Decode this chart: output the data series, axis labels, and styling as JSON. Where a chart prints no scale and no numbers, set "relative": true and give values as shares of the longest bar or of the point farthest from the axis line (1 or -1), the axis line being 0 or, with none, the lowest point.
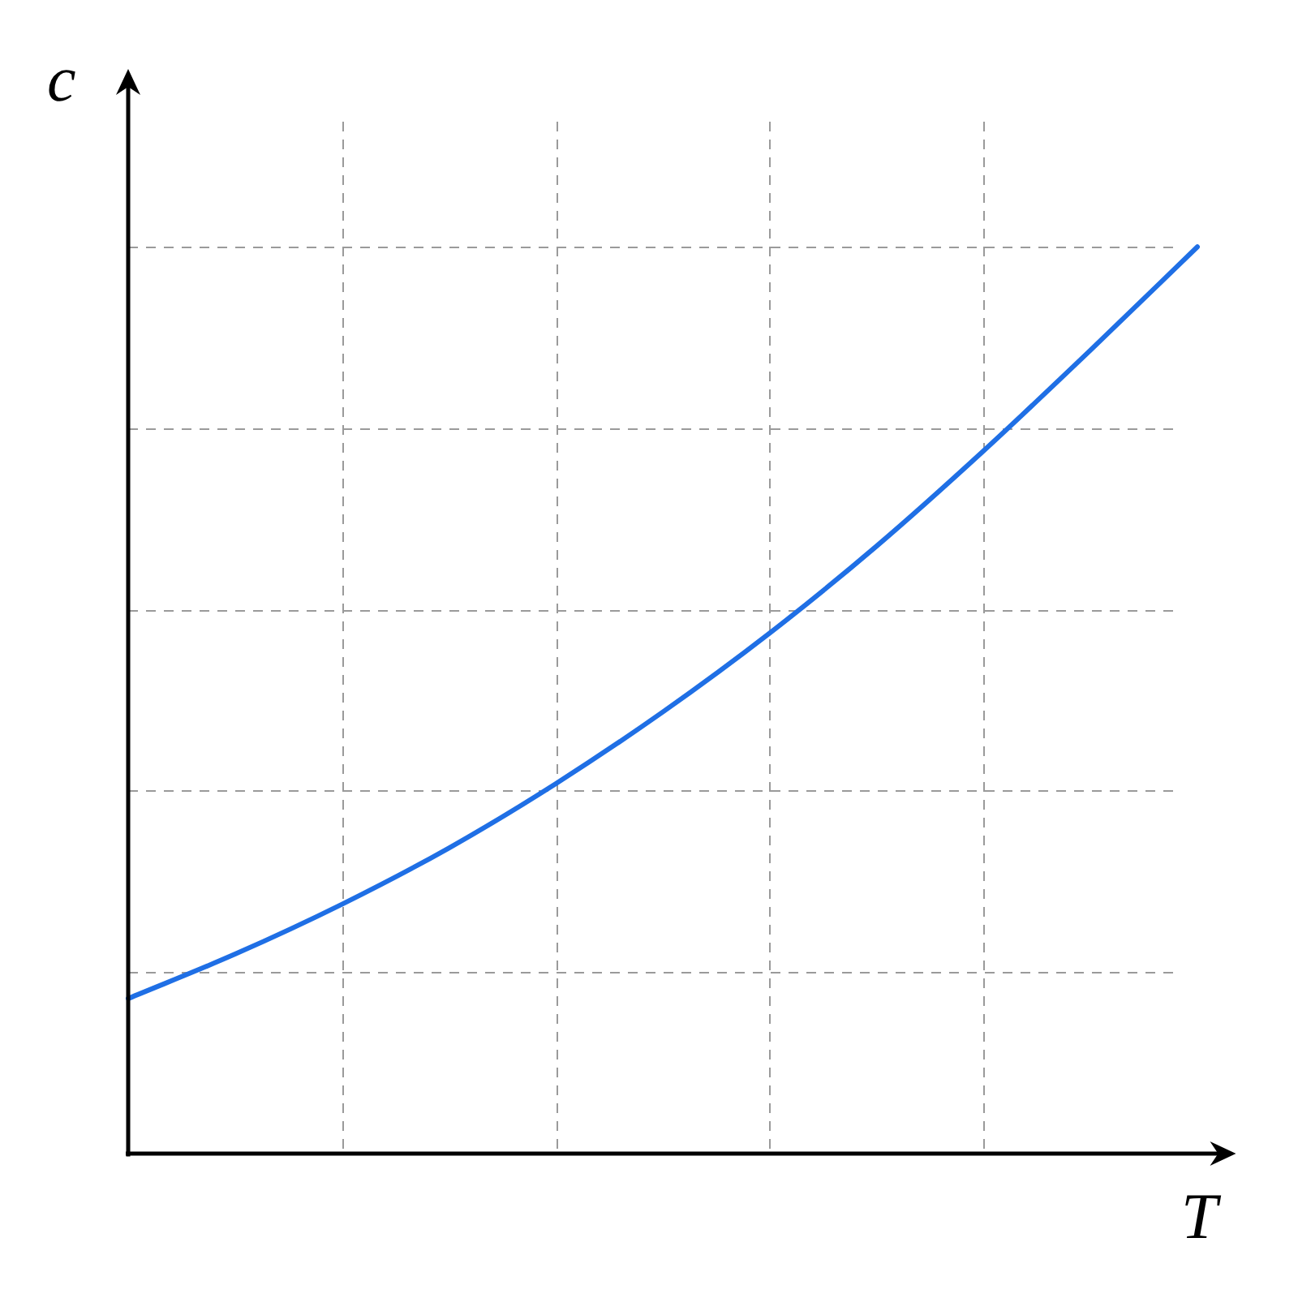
{
  "chart_data": {
    "type": "line",
    "xlabel": "T",
    "ylabel": "c",
    "relative": true,
    "categories": [
      null,
      null,
      null,
      null,
      null,
      null,
      null,
      null,
      null,
      null,
      null
    ],
    "values": [
      0.171,
      0.22,
      0.275,
      0.337,
      0.408,
      0.487,
      0.574,
      0.67,
      0.775,
      0.886,
      1
    ],
    "color": "#1f6fe5",
    "grid": true
  }
}
